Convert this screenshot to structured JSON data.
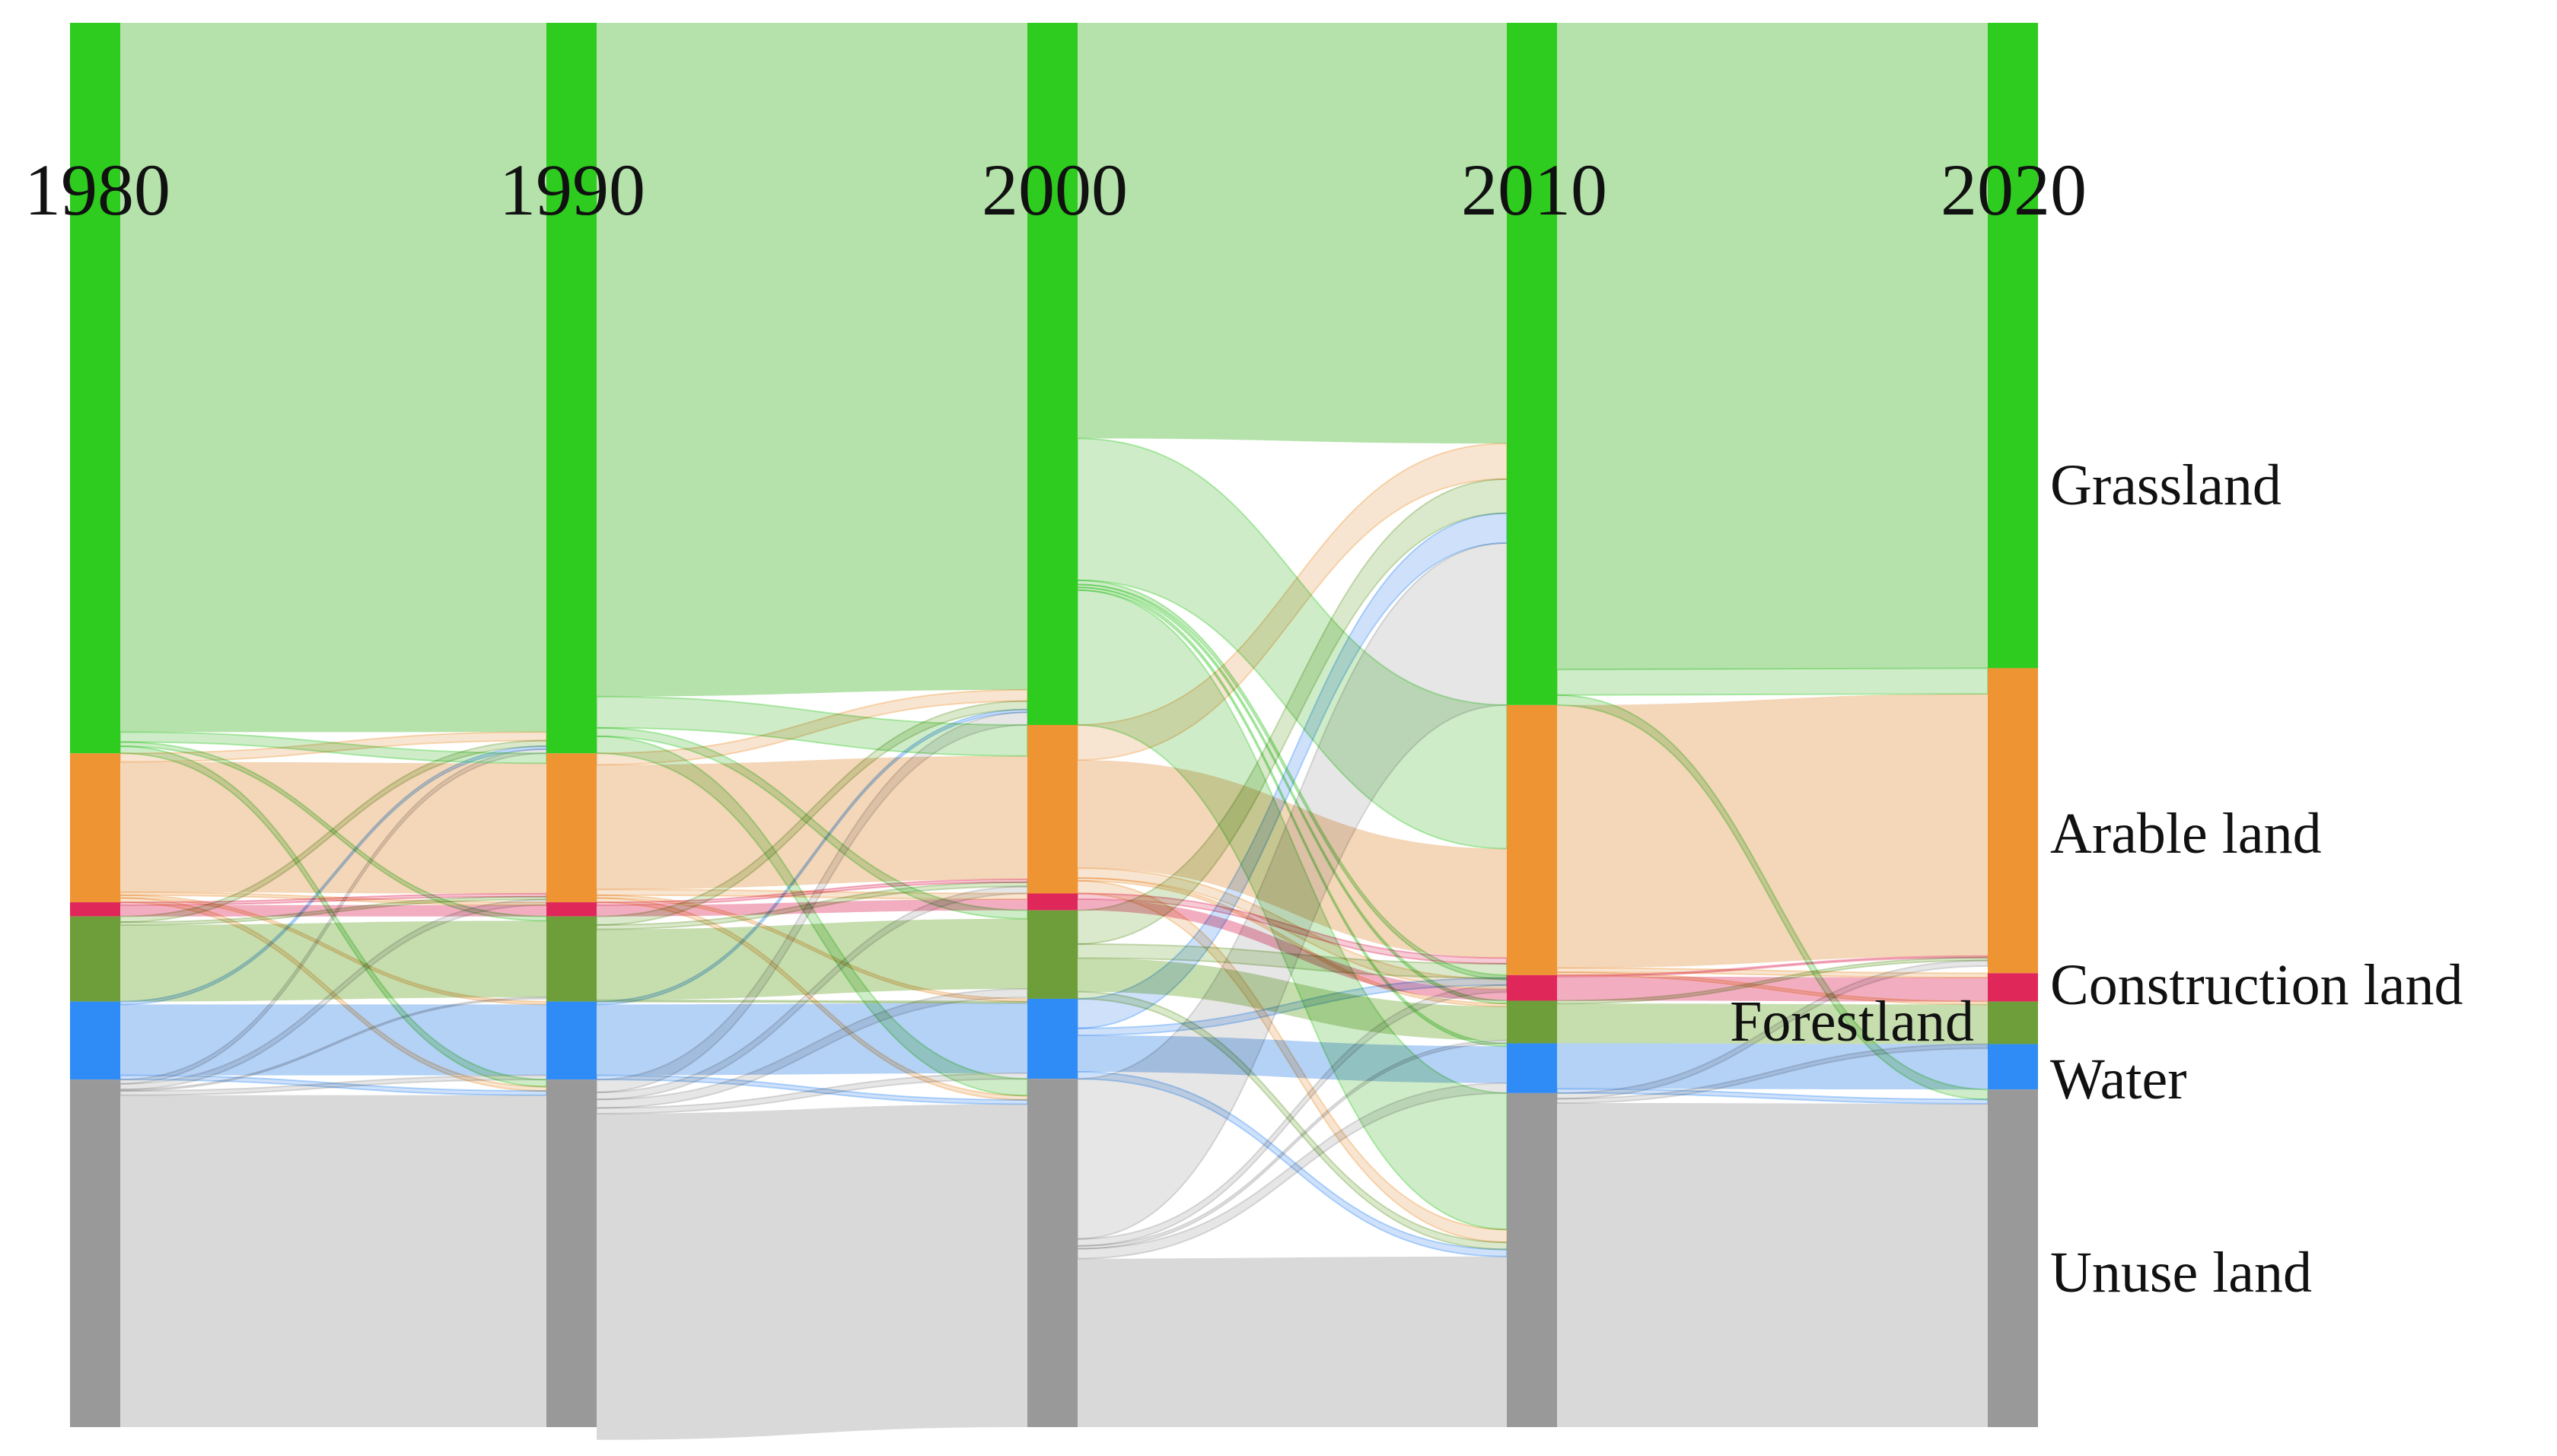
{
  "years": [
    "1980",
    "1990",
    "2000",
    "2010",
    "2020"
  ],
  "categories": [
    {
      "key": "grassland",
      "label": "Grassland",
      "color": "#2ecc1f",
      "flow_color": "#a8dd9c"
    },
    {
      "key": "arable",
      "label": "Arable land",
      "color": "#ee9433",
      "flow_color": "#f2cfab"
    },
    {
      "key": "construction",
      "label": "Construction land",
      "color": "#e0275a",
      "flow_color": "#f0a0b5"
    },
    {
      "key": "forest",
      "label": "Forestland",
      "color": "#6d9e3a",
      "flow_color": "#bcd7a0"
    },
    {
      "key": "water",
      "label": "Water",
      "color": "#2f8cf6",
      "flow_color": "#a7c9f5"
    },
    {
      "key": "unuse",
      "label": "Unuse land",
      "color": "#999999",
      "flow_color": "#d2d2d2"
    }
  ],
  "chart_data": {
    "type": "sankey",
    "columns": [
      "1980",
      "1990",
      "2000",
      "2010",
      "2020"
    ],
    "node_values": {
      "1980": {
        "grassland": 51.5,
        "arable": 10.5,
        "construction": 1.0,
        "forest": 6.0,
        "water": 5.5,
        "unuse": 24.5
      },
      "1990": {
        "grassland": 51.5,
        "arable": 10.5,
        "construction": 1.0,
        "forest": 6.0,
        "water": 5.5,
        "unuse": 24.5
      },
      "2000": {
        "grassland": 50.0,
        "arable": 12.0,
        "construction": 1.2,
        "forest": 6.3,
        "water": 5.7,
        "unuse": 24.8
      },
      "2010": {
        "grassland": 48.0,
        "arable": 19.0,
        "construction": 1.8,
        "forest": 3.0,
        "water": 3.5,
        "unuse": 23.5
      },
      "2020": {
        "grassland": 45.5,
        "arable": 21.5,
        "construction": 2.0,
        "forest": 3.0,
        "water": 3.2,
        "unuse": 23.8
      }
    },
    "transitions": [
      {
        "from": "1980",
        "to": "1990",
        "flows": [
          [
            "grassland",
            "grassland",
            50.0
          ],
          [
            "grassland",
            "arable",
            0.7
          ],
          [
            "grassland",
            "forest",
            0.3
          ],
          [
            "grassland",
            "unuse",
            0.5
          ],
          [
            "arable",
            "arable",
            9.2
          ],
          [
            "arable",
            "grassland",
            0.6
          ],
          [
            "arable",
            "construction",
            0.2
          ],
          [
            "arable",
            "water",
            0.2
          ],
          [
            "arable",
            "unuse",
            0.3
          ],
          [
            "construction",
            "construction",
            0.8
          ],
          [
            "construction",
            "arable",
            0.2
          ],
          [
            "forest",
            "forest",
            5.4
          ],
          [
            "forest",
            "grassland",
            0.4
          ],
          [
            "forest",
            "arable",
            0.2
          ],
          [
            "water",
            "water",
            5.0
          ],
          [
            "water",
            "grassland",
            0.2
          ],
          [
            "water",
            "unuse",
            0.3
          ],
          [
            "unuse",
            "unuse",
            23.4
          ],
          [
            "unuse",
            "grassland",
            0.3
          ],
          [
            "unuse",
            "arable",
            0.4
          ],
          [
            "unuse",
            "water",
            0.3
          ],
          [
            "unuse",
            "forest",
            0.1
          ]
        ]
      },
      {
        "from": "1990",
        "to": "2000",
        "flows": [
          [
            "grassland",
            "grassland",
            47.5
          ],
          [
            "grassland",
            "arable",
            2.2
          ],
          [
            "grassland",
            "forest",
            0.6
          ],
          [
            "grassland",
            "unuse",
            1.2
          ],
          [
            "arable",
            "arable",
            8.8
          ],
          [
            "arable",
            "grassland",
            0.8
          ],
          [
            "arable",
            "construction",
            0.4
          ],
          [
            "arable",
            "water",
            0.2
          ],
          [
            "arable",
            "unuse",
            0.3
          ],
          [
            "construction",
            "construction",
            0.8
          ],
          [
            "construction",
            "arable",
            0.2
          ],
          [
            "forest",
            "forest",
            5.0
          ],
          [
            "forest",
            "grassland",
            0.6
          ],
          [
            "forest",
            "arable",
            0.3
          ],
          [
            "forest",
            "water",
            0.1
          ],
          [
            "water",
            "water",
            5.0
          ],
          [
            "water",
            "grassland",
            0.2
          ],
          [
            "water",
            "unuse",
            0.3
          ],
          [
            "unuse",
            "unuse",
            23.0
          ],
          [
            "unuse",
            "grassland",
            0.9
          ],
          [
            "unuse",
            "arable",
            0.5
          ],
          [
            "unuse",
            "water",
            0.4
          ],
          [
            "unuse",
            "forest",
            0.6
          ]
        ]
      },
      {
        "from": "2000",
        "to": "2010",
        "flows": [
          [
            "grassland",
            "grassland",
            29.6
          ],
          [
            "grassland",
            "arable",
            10.1
          ],
          [
            "grassland",
            "unuse",
            9.6
          ],
          [
            "grassland",
            "construction",
            0.3
          ],
          [
            "grassland",
            "forest",
            0.2
          ],
          [
            "grassland",
            "water",
            0.2
          ],
          [
            "arable",
            "arable",
            7.7
          ],
          [
            "arable",
            "grassland",
            2.5
          ],
          [
            "arable",
            "construction",
            0.7
          ],
          [
            "arable",
            "unuse",
            0.9
          ],
          [
            "arable",
            "forest",
            0.2
          ],
          [
            "construction",
            "construction",
            0.8
          ],
          [
            "construction",
            "arable",
            0.4
          ],
          [
            "forest",
            "grassland",
            2.4
          ],
          [
            "forest",
            "arable",
            1.0
          ],
          [
            "forest",
            "forest",
            2.4
          ],
          [
            "forest",
            "unuse",
            0.5
          ],
          [
            "water",
            "water",
            2.6
          ],
          [
            "water",
            "grassland",
            2.1
          ],
          [
            "water",
            "arable",
            0.5
          ],
          [
            "water",
            "unuse",
            0.5
          ],
          [
            "unuse",
            "grassland",
            11.4
          ],
          [
            "unuse",
            "unuse",
            12.0
          ],
          [
            "unuse",
            "water",
            0.7
          ],
          [
            "unuse",
            "forest",
            0.2
          ],
          [
            "unuse",
            "arable",
            0.5
          ]
        ]
      },
      {
        "from": "2010",
        "to": "2020",
        "flows": [
          [
            "grassland",
            "grassland",
            45.5
          ],
          [
            "grassland",
            "arable",
            1.8
          ],
          [
            "grassland",
            "unuse",
            0.7
          ],
          [
            "arable",
            "arable",
            18.5
          ],
          [
            "arable",
            "construction",
            0.3
          ],
          [
            "arable",
            "forest",
            0.2
          ],
          [
            "construction",
            "construction",
            1.7
          ],
          [
            "construction",
            "arable",
            0.1
          ],
          [
            "forest",
            "forest",
            2.8
          ],
          [
            "forest",
            "arable",
            0.2
          ],
          [
            "water",
            "water",
            3.2
          ],
          [
            "water",
            "unuse",
            0.3
          ],
          [
            "unuse",
            "unuse",
            22.8
          ],
          [
            "unuse",
            "arable",
            0.4
          ],
          [
            "unuse",
            "forest",
            0.3
          ]
        ]
      }
    ]
  }
}
